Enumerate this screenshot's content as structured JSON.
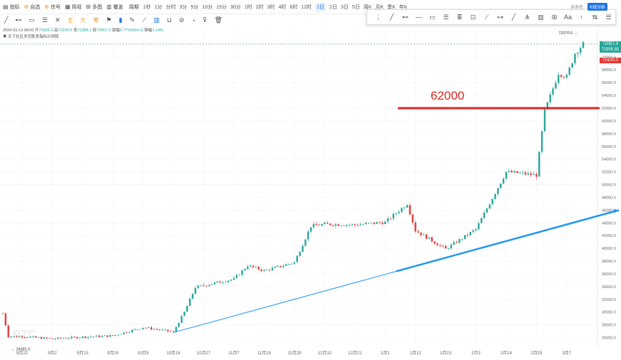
{
  "toolbar": {
    "items": [
      {
        "label": "指标",
        "icon": "indicator-icon",
        "hi": false
      },
      {
        "label": "自选",
        "icon": "star-icon",
        "hi": true
      },
      {
        "label": "信号",
        "icon": "signal-icon",
        "hi": true
      },
      {
        "label": "简视",
        "icon": "view-icon",
        "hi": false
      },
      {
        "label": "多图",
        "icon": "grid-icon",
        "hi": false
      },
      {
        "label": "覆盖",
        "icon": "overlay-icon",
        "hi": false
      },
      {
        "label": "周期",
        "icon": "clock-icon",
        "hi": false
      }
    ],
    "timeframes": [
      "1秒",
      "1分",
      "分时",
      "3分",
      "5分",
      "10分",
      "15分",
      "30分",
      "1时",
      "2时",
      "3时",
      "4时",
      "6时",
      "12时",
      "1日",
      "2日",
      "3日",
      "5日",
      "周K",
      "月K",
      "季K",
      "年K"
    ],
    "active_timeframe": "1日"
  },
  "toolbar2": {
    "items": [
      "主",
      "大",
      "筹"
    ]
  },
  "topright": {
    "label": "未命名",
    "button": "K线分析"
  },
  "info": {
    "line1_prefix": "2024-03-13 08:00",
    "open_label": "开",
    "open": "71503.3",
    "high_label": "高",
    "high": "72200.0",
    "low_label": "低",
    "low": "71388.1",
    "close_label": "收",
    "close": "72057.3",
    "change_label": "涨幅",
    "change": "0.77%(554.1)",
    "amp_label": "振幅",
    "amp": "1.14%",
    "line2": "天下社区多空胜率指标示例版"
  },
  "watermark": "BTC",
  "chart_data": {
    "type": "candlestick",
    "title": "",
    "annotation": "62000",
    "hline_value": 62000,
    "trendline": {
      "from": {
        "date": "10月16",
        "value": 26800
      },
      "to": {
        "date": "3月13",
        "value": 46000
      }
    },
    "ylim": [
      24500,
      74500
    ],
    "yticks": [
      26000,
      28000,
      30000,
      32000,
      34000,
      36000,
      38000,
      40000,
      42000,
      44000,
      46000,
      48000,
      50000,
      52000,
      54000,
      56000,
      58000,
      60000,
      62000,
      64000,
      66000,
      68000,
      70000,
      72000
    ],
    "xticks": [
      "8月22",
      "9月2",
      "9月13",
      "9月24",
      "10月5",
      "10月16",
      "10月27",
      "11月7",
      "11月18",
      "11月29",
      "12月10",
      "12月21",
      "1月1",
      "1月12",
      "1月23",
      "2月3",
      "2月14",
      "2月25",
      "3月7"
    ],
    "high_label": "73370.0",
    "low_label": "24581.0",
    "price_tags": [
      {
        "value": "72057.3",
        "color": "#26a69a"
      },
      {
        "value": "71955.81",
        "color": "#26a69a"
      },
      {
        "value": "70100.0",
        "color": "#e53935"
      }
    ],
    "anchors": [
      {
        "date": "8月15",
        "value": 29800
      },
      {
        "date": "8月17",
        "value": 26200
      },
      {
        "date": "8月22",
        "value": 26200
      },
      {
        "date": "9月2",
        "value": 25800
      },
      {
        "date": "9月13",
        "value": 26100
      },
      {
        "date": "9月24",
        "value": 26300
      },
      {
        "date": "10月5",
        "value": 27600
      },
      {
        "date": "10月16",
        "value": 26900
      },
      {
        "date": "10月20",
        "value": 30000
      },
      {
        "date": "10月24",
        "value": 33900
      },
      {
        "date": "11月7",
        "value": 35200
      },
      {
        "date": "11月12",
        "value": 37300
      },
      {
        "date": "11月18",
        "value": 36500
      },
      {
        "date": "11月29",
        "value": 37800
      },
      {
        "date": "12月5",
        "value": 43500
      },
      {
        "date": "12月10",
        "value": 43800
      },
      {
        "date": "12月21",
        "value": 43700
      },
      {
        "date": "1月1",
        "value": 44100
      },
      {
        "date": "1月9",
        "value": 47000
      },
      {
        "date": "1月12",
        "value": 42800
      },
      {
        "date": "1月23",
        "value": 39900
      },
      {
        "date": "2月3",
        "value": 43000
      },
      {
        "date": "2月14",
        "value": 52000
      },
      {
        "date": "2月25",
        "value": 51500
      },
      {
        "date": "2月28",
        "value": 61500
      },
      {
        "date": "3月4",
        "value": 67500
      },
      {
        "date": "3月7",
        "value": 66900
      },
      {
        "date": "3月10",
        "value": 70600
      },
      {
        "date": "3月13",
        "value": 72057
      }
    ],
    "colors": {
      "up": "#26a69a",
      "down": "#e53935",
      "hline": "#e02424",
      "trend": "#2196f3"
    }
  }
}
